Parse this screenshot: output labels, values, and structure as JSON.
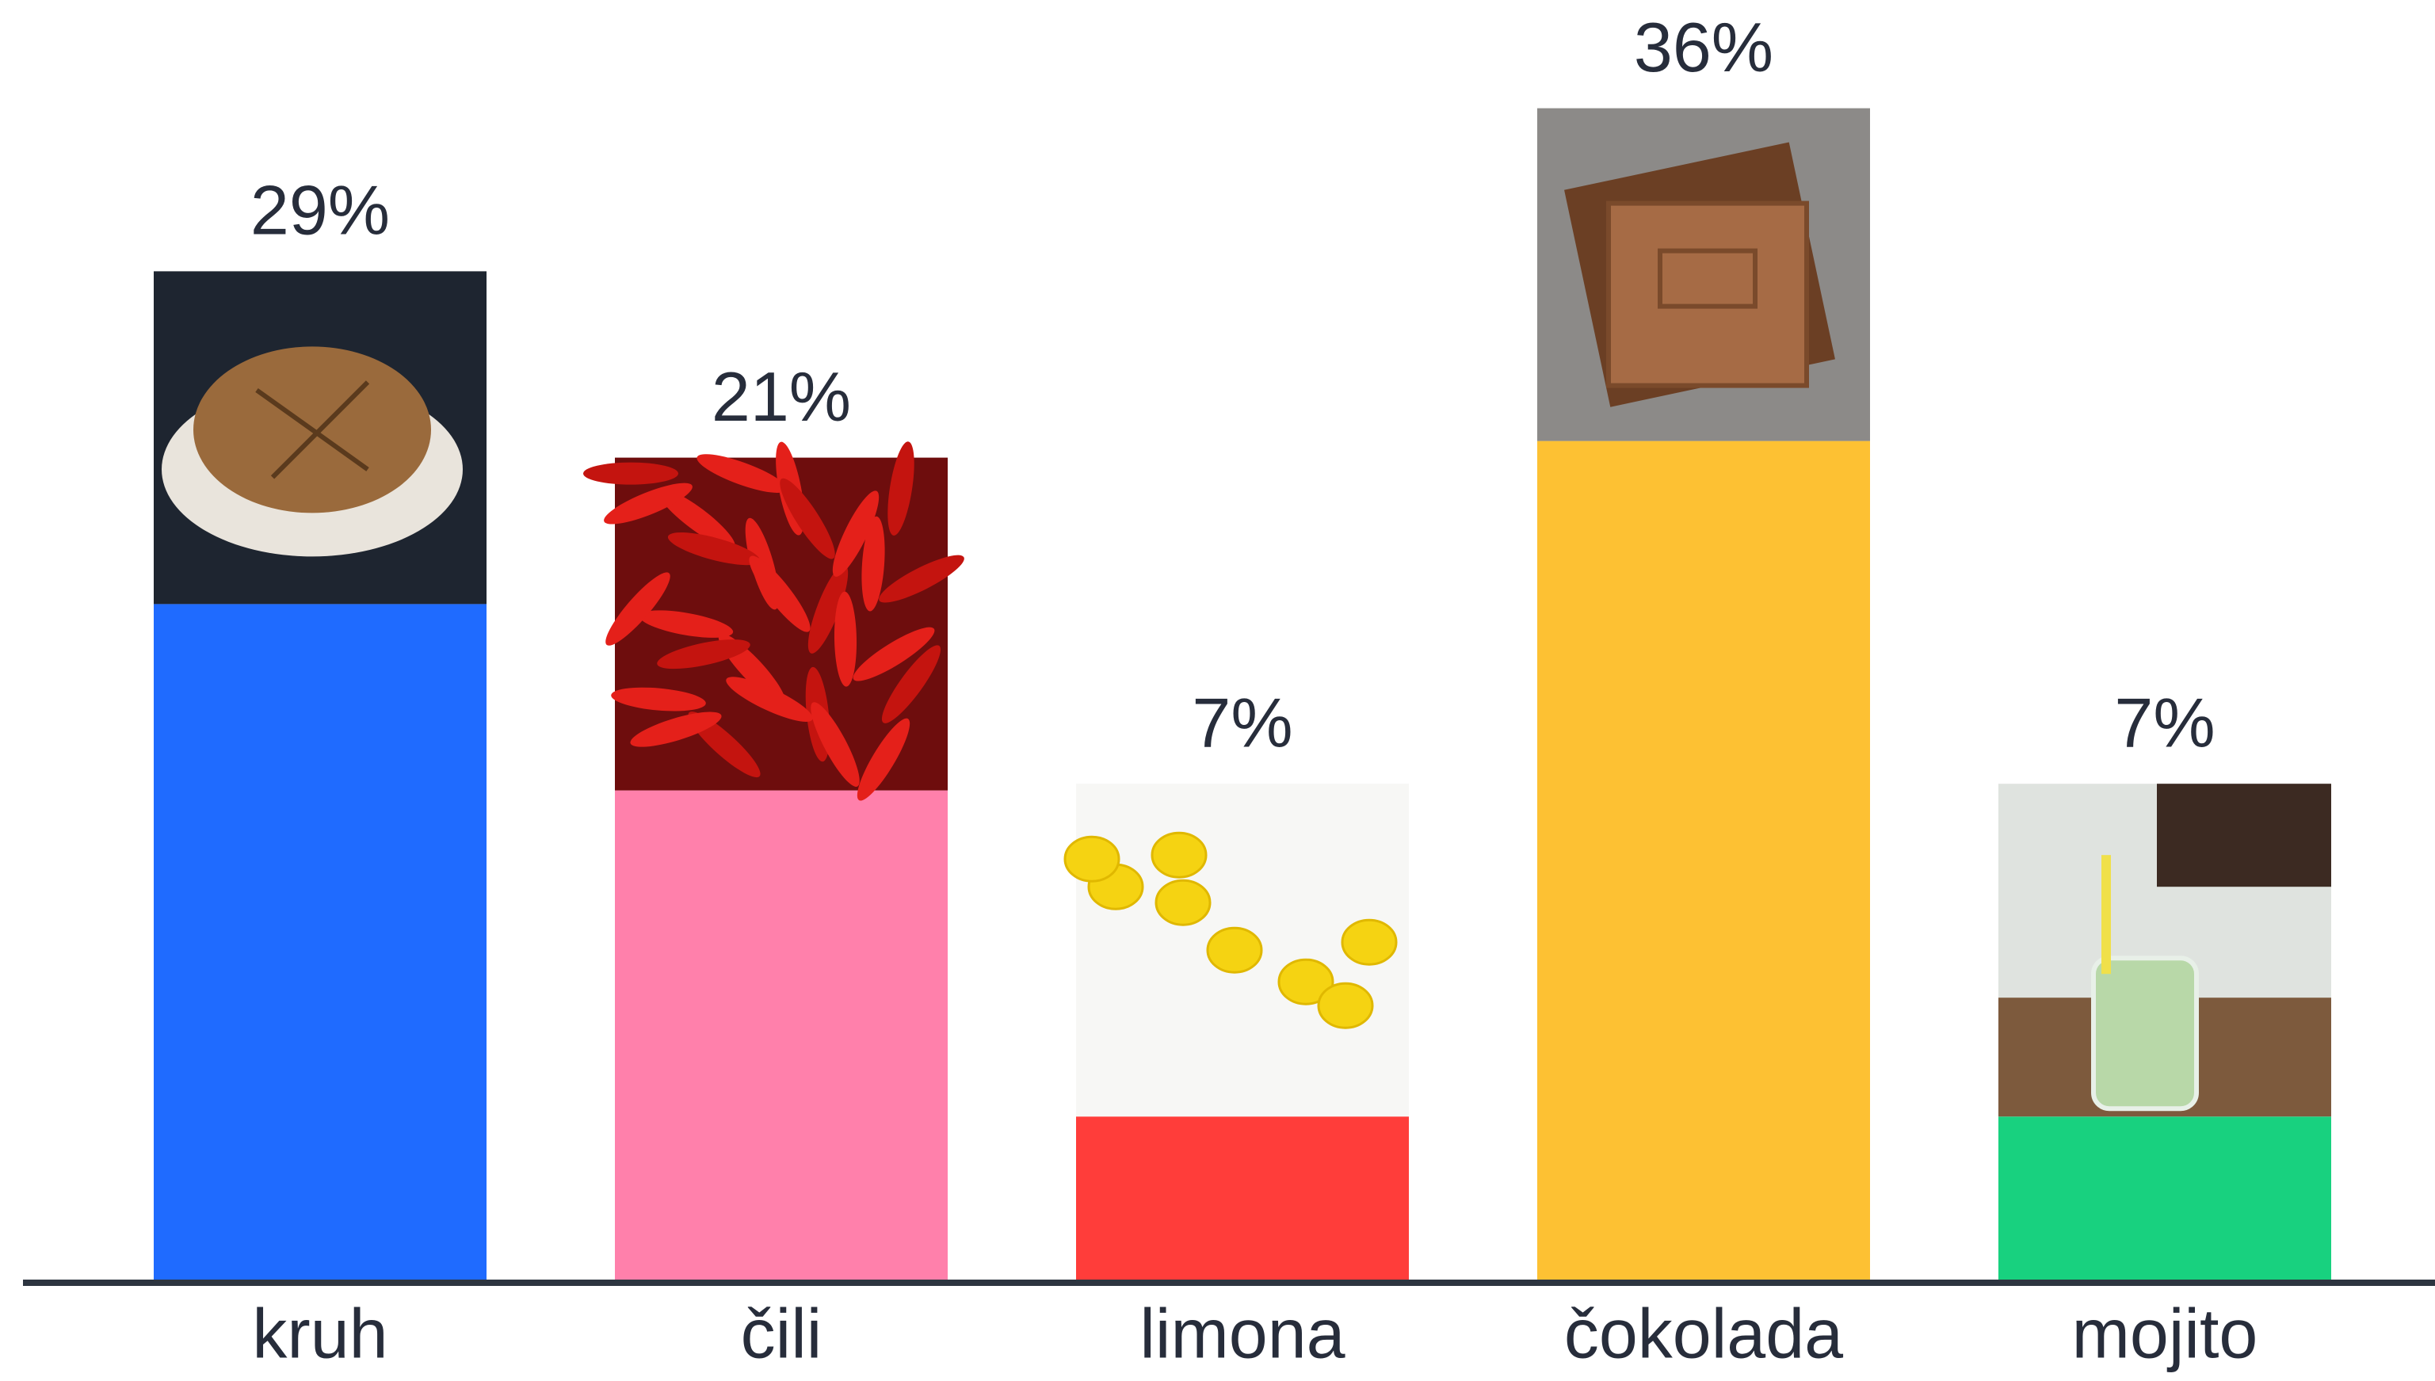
{
  "chart_data": {
    "type": "bar",
    "categories": [
      "kruh",
      "čili",
      "limona",
      "čokolada",
      "mojito"
    ],
    "values": [
      29,
      21,
      7,
      36,
      7
    ],
    "value_labels": [
      "29%",
      "21%",
      "7%",
      "36%",
      "7%"
    ],
    "colors": [
      "#1f6bff",
      "#ff80ab",
      "#ff3d3a",
      "#fdc133",
      "#18d17f"
    ]
  }
}
